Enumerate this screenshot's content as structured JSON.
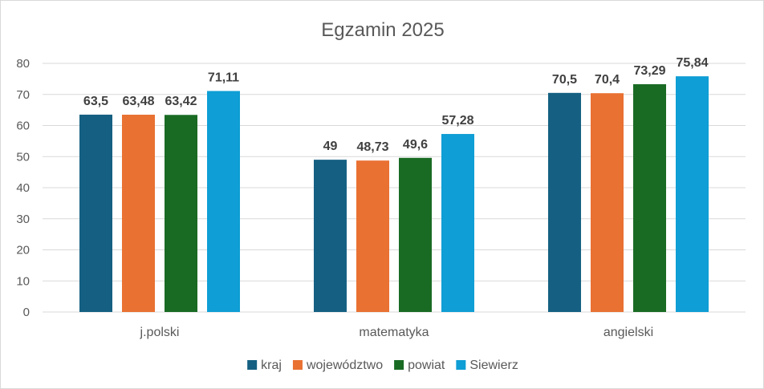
{
  "chart_data": {
    "type": "bar",
    "title": "Egzamin 2025",
    "categories": [
      "j.polski",
      "matematyka",
      "angielski"
    ],
    "series": [
      {
        "name": "kraj",
        "color": "#156082",
        "values": [
          63.5,
          49,
          70.5
        ],
        "labels": [
          "63,5",
          "49",
          "70,5"
        ]
      },
      {
        "name": "województwo",
        "color": "#E97132",
        "values": [
          63.48,
          48.73,
          70.4
        ],
        "labels": [
          "63,48",
          "48,73",
          "70,4"
        ]
      },
      {
        "name": "powiat",
        "color": "#196B24",
        "values": [
          63.42,
          49.6,
          73.29
        ],
        "labels": [
          "63,42",
          "49,6",
          "73,29"
        ]
      },
      {
        "name": "Siewierz",
        "color": "#0F9ED5",
        "values": [
          71.11,
          57.28,
          75.84
        ],
        "labels": [
          "71,11",
          "57,28",
          "75,84"
        ]
      }
    ],
    "ylim": [
      0,
      80
    ],
    "yticks": [
      0,
      10,
      20,
      30,
      40,
      50,
      60,
      70,
      80
    ],
    "grid": true,
    "legend": "bottom"
  }
}
